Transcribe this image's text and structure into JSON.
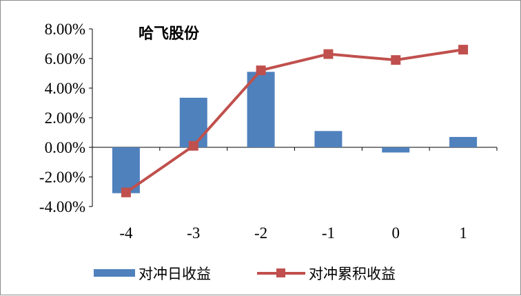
{
  "chart_data": {
    "type": "bar+line",
    "title": "哈飞股份",
    "categories": [
      "-4",
      "-3",
      "-2",
      "-1",
      "0",
      "1"
    ],
    "y_ticks": [
      "8.00%",
      "6.00%",
      "4.00%",
      "2.00%",
      "0.00%",
      "-2.00%",
      "-4.00%"
    ],
    "ylim": [
      -4,
      8
    ],
    "unit": "%",
    "series": [
      {
        "name": "对冲日收益",
        "type": "bar",
        "color": "#4f81bd",
        "values": [
          -3.1,
          3.35,
          5.1,
          1.1,
          -0.35,
          0.7
        ]
      },
      {
        "name": "对冲累积收益",
        "type": "line",
        "marker": "square",
        "color": "#c0504d",
        "values": [
          -3.05,
          0.1,
          5.2,
          6.3,
          5.9,
          6.6
        ]
      }
    ],
    "grid": false,
    "legend_position": "bottom"
  }
}
